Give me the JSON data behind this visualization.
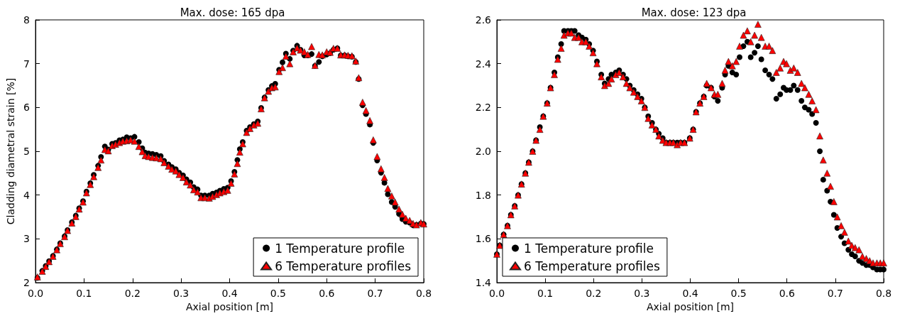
{
  "chart_data": [
    {
      "type": "scatter",
      "title": "Max. dose: 165 dpa",
      "xlabel": "Axial position [m]",
      "ylabel": "Cladding diametral strain [%]",
      "xlim": [
        0,
        0.8
      ],
      "xticks": [
        {
          "value": 0,
          "label": "0.0"
        },
        0.1,
        0.2,
        0.3,
        0.4,
        0.5,
        0.6,
        0.7,
        0.8
      ],
      "ylim": [
        2,
        8
      ],
      "yticks": [
        2,
        3,
        4,
        5,
        6,
        7,
        8
      ],
      "grid": false,
      "legend": "bottom right",
      "series": [
        {
          "name": "1 Temperature profile",
          "color": "#000000",
          "marker": "circle",
          "x": [
            0.004,
            0.014,
            0.021,
            0.028,
            0.036,
            0.044,
            0.051,
            0.06,
            0.066,
            0.075,
            0.083,
            0.09,
            0.098,
            0.105,
            0.113,
            0.12,
            0.129,
            0.135,
            0.143,
            0.15,
            0.158,
            0.165,
            0.173,
            0.18,
            0.188,
            0.196,
            0.204,
            0.213,
            0.22,
            0.226,
            0.233,
            0.241,
            0.249,
            0.258,
            0.265,
            0.274,
            0.281,
            0.289,
            0.296,
            0.304,
            0.311,
            0.319,
            0.326,
            0.334,
            0.341,
            0.349,
            0.358,
            0.365,
            0.373,
            0.38,
            0.388,
            0.396,
            0.403,
            0.41,
            0.416,
            0.421,
            0.427,
            0.435,
            0.442,
            0.45,
            0.458,
            0.465,
            0.472,
            0.48,
            0.487,
            0.494,
            0.502,
            0.509,
            0.516,
            0.524,
            0.531,
            0.539,
            0.546,
            0.554,
            0.561,
            0.569,
            0.576,
            0.584,
            0.591,
            0.6,
            0.607,
            0.614,
            0.622,
            0.629,
            0.637,
            0.644,
            0.652,
            0.66,
            0.666,
            0.674,
            0.681,
            0.689,
            0.696,
            0.704,
            0.712,
            0.719,
            0.726,
            0.734,
            0.741,
            0.749,
            0.756,
            0.763,
            0.771,
            0.778,
            0.785,
            0.794,
            0.8
          ],
          "values": [
            2.11,
            2.27,
            2.38,
            2.49,
            2.61,
            2.76,
            2.9,
            3.06,
            3.2,
            3.38,
            3.53,
            3.7,
            3.86,
            4.08,
            4.27,
            4.46,
            4.67,
            4.87,
            5.11,
            5.04,
            5.17,
            5.19,
            5.25,
            5.27,
            5.32,
            5.3,
            5.33,
            5.21,
            5.07,
            4.97,
            4.95,
            4.94,
            4.92,
            4.89,
            4.78,
            4.7,
            4.64,
            4.59,
            4.51,
            4.45,
            4.36,
            4.29,
            4.18,
            4.13,
            3.99,
            3.99,
            3.99,
            4.03,
            4.06,
            4.1,
            4.14,
            4.17,
            4.32,
            4.53,
            4.8,
            5.05,
            5.21,
            5.47,
            5.55,
            5.62,
            5.68,
            5.99,
            6.23,
            6.4,
            6.49,
            6.54,
            6.86,
            7.03,
            7.23,
            7.11,
            7.3,
            7.41,
            7.32,
            7.19,
            7.19,
            7.22,
            6.95,
            7.04,
            7.17,
            7.21,
            7.24,
            7.32,
            7.35,
            7.19,
            7.19,
            7.17,
            7.16,
            7.04,
            6.65,
            6.05,
            5.85,
            5.61,
            5.19,
            4.79,
            4.51,
            4.28,
            4.02,
            3.84,
            3.73,
            3.57,
            3.45,
            3.39,
            3.37,
            3.31,
            3.32,
            3.35,
            3.34
          ]
        },
        {
          "name": "6 Temperature profiles",
          "color": "#ff0000",
          "marker": "triangle",
          "x": [
            0.004,
            0.014,
            0.021,
            0.028,
            0.036,
            0.044,
            0.051,
            0.06,
            0.066,
            0.075,
            0.083,
            0.09,
            0.098,
            0.105,
            0.113,
            0.12,
            0.129,
            0.135,
            0.143,
            0.15,
            0.158,
            0.165,
            0.173,
            0.18,
            0.188,
            0.196,
            0.204,
            0.213,
            0.22,
            0.226,
            0.233,
            0.241,
            0.249,
            0.258,
            0.265,
            0.274,
            0.281,
            0.289,
            0.296,
            0.304,
            0.311,
            0.319,
            0.326,
            0.334,
            0.341,
            0.349,
            0.358,
            0.365,
            0.373,
            0.38,
            0.388,
            0.396,
            0.403,
            0.41,
            0.416,
            0.421,
            0.427,
            0.435,
            0.442,
            0.45,
            0.458,
            0.465,
            0.472,
            0.48,
            0.487,
            0.494,
            0.502,
            0.509,
            0.516,
            0.524,
            0.531,
            0.539,
            0.546,
            0.554,
            0.561,
            0.569,
            0.576,
            0.584,
            0.591,
            0.6,
            0.607,
            0.614,
            0.622,
            0.629,
            0.637,
            0.644,
            0.652,
            0.66,
            0.666,
            0.674,
            0.681,
            0.689,
            0.696,
            0.704,
            0.712,
            0.719,
            0.726,
            0.734,
            0.741,
            0.749,
            0.756,
            0.763,
            0.771,
            0.778,
            0.785,
            0.794,
            0.8
          ],
          "values": [
            2.13,
            2.26,
            2.37,
            2.48,
            2.6,
            2.75,
            2.89,
            3.05,
            3.19,
            3.36,
            3.51,
            3.68,
            3.84,
            4.05,
            4.24,
            4.42,
            4.63,
            4.8,
            5.04,
            5.01,
            5.13,
            5.16,
            5.2,
            5.23,
            5.24,
            5.26,
            5.23,
            5.11,
            4.99,
            4.9,
            4.88,
            4.86,
            4.85,
            4.83,
            4.74,
            4.66,
            4.59,
            4.55,
            4.47,
            4.4,
            4.3,
            4.23,
            4.12,
            4.07,
            3.94,
            3.94,
            3.93,
            3.97,
            4.01,
            4.05,
            4.08,
            4.11,
            4.27,
            4.48,
            4.72,
            4.98,
            5.17,
            5.43,
            5.52,
            5.6,
            5.64,
            5.97,
            6.22,
            6.37,
            6.45,
            6.47,
            6.82,
            6.91,
            7.17,
            7.0,
            7.27,
            7.36,
            7.31,
            7.27,
            7.21,
            7.39,
            6.96,
            7.21,
            7.2,
            7.27,
            7.26,
            7.35,
            7.35,
            7.2,
            7.2,
            7.19,
            7.18,
            7.06,
            6.68,
            6.12,
            5.93,
            5.7,
            5.26,
            4.88,
            4.6,
            4.4,
            4.15,
            3.98,
            3.84,
            3.68,
            3.56,
            3.47,
            3.42,
            3.35,
            3.32,
            3.37,
            3.34
          ]
        }
      ]
    },
    {
      "type": "scatter",
      "title": "Max. dose: 123 dpa",
      "xlabel": "Axial position [m]",
      "xlim": [
        0,
        0.8
      ],
      "xticks": [
        {
          "value": 0,
          "label": "0.0"
        },
        0.1,
        0.2,
        0.3,
        0.4,
        0.5,
        0.6,
        0.7,
        0.8
      ],
      "ylim": [
        1.4,
        2.6
      ],
      "yticks": [
        1.4,
        1.6,
        1.8,
        {
          "value": 2,
          "label": "2.0"
        },
        2.2,
        2.4,
        2.6
      ],
      "grid": false,
      "legend": "bottom left",
      "series": [
        {
          "name": "1 Temperature profile",
          "color": "#000000",
          "marker": "circle",
          "x": [
            0.0,
            0.006,
            0.014,
            0.022,
            0.029,
            0.037,
            0.044,
            0.051,
            0.059,
            0.066,
            0.074,
            0.081,
            0.089,
            0.096,
            0.104,
            0.111,
            0.119,
            0.126,
            0.133,
            0.139,
            0.147,
            0.154,
            0.161,
            0.169,
            0.176,
            0.184,
            0.191,
            0.199,
            0.207,
            0.216,
            0.223,
            0.231,
            0.237,
            0.246,
            0.253,
            0.261,
            0.268,
            0.275,
            0.283,
            0.291,
            0.299,
            0.306,
            0.313,
            0.321,
            0.329,
            0.335,
            0.343,
            0.35,
            0.358,
            0.365,
            0.373,
            0.38,
            0.388,
            0.399,
            0.406,
            0.412,
            0.42,
            0.428,
            0.434,
            0.443,
            0.45,
            0.457,
            0.466,
            0.472,
            0.479,
            0.487,
            0.495,
            0.502,
            0.51,
            0.518,
            0.525,
            0.533,
            0.54,
            0.547,
            0.555,
            0.563,
            0.57,
            0.578,
            0.586,
            0.593,
            0.599,
            0.607,
            0.614,
            0.622,
            0.63,
            0.637,
            0.645,
            0.652,
            0.66,
            0.668,
            0.675,
            0.683,
            0.69,
            0.697,
            0.704,
            0.712,
            0.719,
            0.727,
            0.734,
            0.741,
            0.749,
            0.756,
            0.764,
            0.771,
            0.778,
            0.786,
            0.793,
            0.8
          ],
          "values": [
            1.53,
            1.57,
            1.62,
            1.66,
            1.71,
            1.75,
            1.8,
            1.85,
            1.9,
            1.95,
            2.0,
            2.05,
            2.11,
            2.16,
            2.22,
            2.29,
            2.36,
            2.43,
            2.49,
            2.55,
            2.55,
            2.55,
            2.55,
            2.53,
            2.52,
            2.51,
            2.49,
            2.46,
            2.41,
            2.35,
            2.31,
            2.33,
            2.35,
            2.36,
            2.37,
            2.35,
            2.33,
            2.3,
            2.28,
            2.26,
            2.24,
            2.2,
            2.16,
            2.13,
            2.1,
            2.08,
            2.06,
            2.04,
            2.04,
            2.04,
            2.04,
            2.04,
            2.04,
            2.06,
            2.1,
            2.18,
            2.22,
            2.25,
            2.3,
            2.29,
            2.25,
            2.23,
            2.29,
            2.35,
            2.39,
            2.36,
            2.35,
            2.43,
            2.48,
            2.5,
            2.43,
            2.45,
            2.48,
            2.42,
            2.37,
            2.35,
            2.33,
            2.24,
            2.26,
            2.29,
            2.28,
            2.28,
            2.3,
            2.28,
            2.23,
            2.2,
            2.19,
            2.17,
            2.13,
            2.0,
            1.87,
            1.82,
            1.77,
            1.71,
            1.65,
            1.61,
            1.58,
            1.55,
            1.53,
            1.52,
            1.5,
            1.49,
            1.48,
            1.48,
            1.47,
            1.46,
            1.46,
            1.46
          ]
        },
        {
          "name": "6 Temperature profiles",
          "color": "#ff0000",
          "marker": "triangle",
          "x": [
            0.0,
            0.006,
            0.014,
            0.022,
            0.029,
            0.037,
            0.044,
            0.051,
            0.059,
            0.066,
            0.074,
            0.081,
            0.089,
            0.096,
            0.104,
            0.111,
            0.119,
            0.126,
            0.133,
            0.139,
            0.147,
            0.154,
            0.161,
            0.169,
            0.176,
            0.184,
            0.191,
            0.199,
            0.207,
            0.216,
            0.223,
            0.231,
            0.237,
            0.246,
            0.253,
            0.261,
            0.268,
            0.275,
            0.283,
            0.291,
            0.299,
            0.306,
            0.313,
            0.321,
            0.329,
            0.335,
            0.343,
            0.35,
            0.358,
            0.365,
            0.373,
            0.38,
            0.388,
            0.399,
            0.406,
            0.412,
            0.42,
            0.428,
            0.434,
            0.443,
            0.45,
            0.457,
            0.466,
            0.472,
            0.479,
            0.487,
            0.495,
            0.502,
            0.51,
            0.518,
            0.525,
            0.533,
            0.54,
            0.547,
            0.555,
            0.563,
            0.57,
            0.578,
            0.586,
            0.593,
            0.599,
            0.607,
            0.614,
            0.622,
            0.63,
            0.637,
            0.645,
            0.652,
            0.66,
            0.668,
            0.675,
            0.683,
            0.69,
            0.697,
            0.704,
            0.712,
            0.719,
            0.727,
            0.734,
            0.741,
            0.749,
            0.756,
            0.764,
            0.771,
            0.778,
            0.786,
            0.793,
            0.8
          ],
          "values": [
            1.53,
            1.57,
            1.62,
            1.66,
            1.71,
            1.75,
            1.8,
            1.85,
            1.9,
            1.95,
            2.0,
            2.05,
            2.1,
            2.16,
            2.22,
            2.29,
            2.35,
            2.42,
            2.47,
            2.53,
            2.54,
            2.54,
            2.52,
            2.52,
            2.5,
            2.5,
            2.48,
            2.45,
            2.4,
            2.34,
            2.3,
            2.31,
            2.33,
            2.35,
            2.36,
            2.34,
            2.31,
            2.29,
            2.27,
            2.25,
            2.23,
            2.2,
            2.15,
            2.12,
            2.1,
            2.07,
            2.05,
            2.04,
            2.04,
            2.04,
            2.03,
            2.04,
            2.04,
            2.06,
            2.1,
            2.18,
            2.22,
            2.25,
            2.31,
            2.29,
            2.26,
            2.26,
            2.31,
            2.37,
            2.41,
            2.39,
            2.41,
            2.48,
            2.53,
            2.55,
            2.5,
            2.53,
            2.58,
            2.52,
            2.48,
            2.48,
            2.46,
            2.36,
            2.38,
            2.41,
            2.4,
            2.37,
            2.38,
            2.36,
            2.31,
            2.29,
            2.26,
            2.23,
            2.19,
            2.07,
            1.96,
            1.9,
            1.84,
            1.77,
            1.7,
            1.66,
            1.63,
            1.59,
            1.57,
            1.56,
            1.55,
            1.52,
            1.51,
            1.5,
            1.49,
            1.49,
            1.49,
            1.49
          ]
        }
      ]
    }
  ]
}
